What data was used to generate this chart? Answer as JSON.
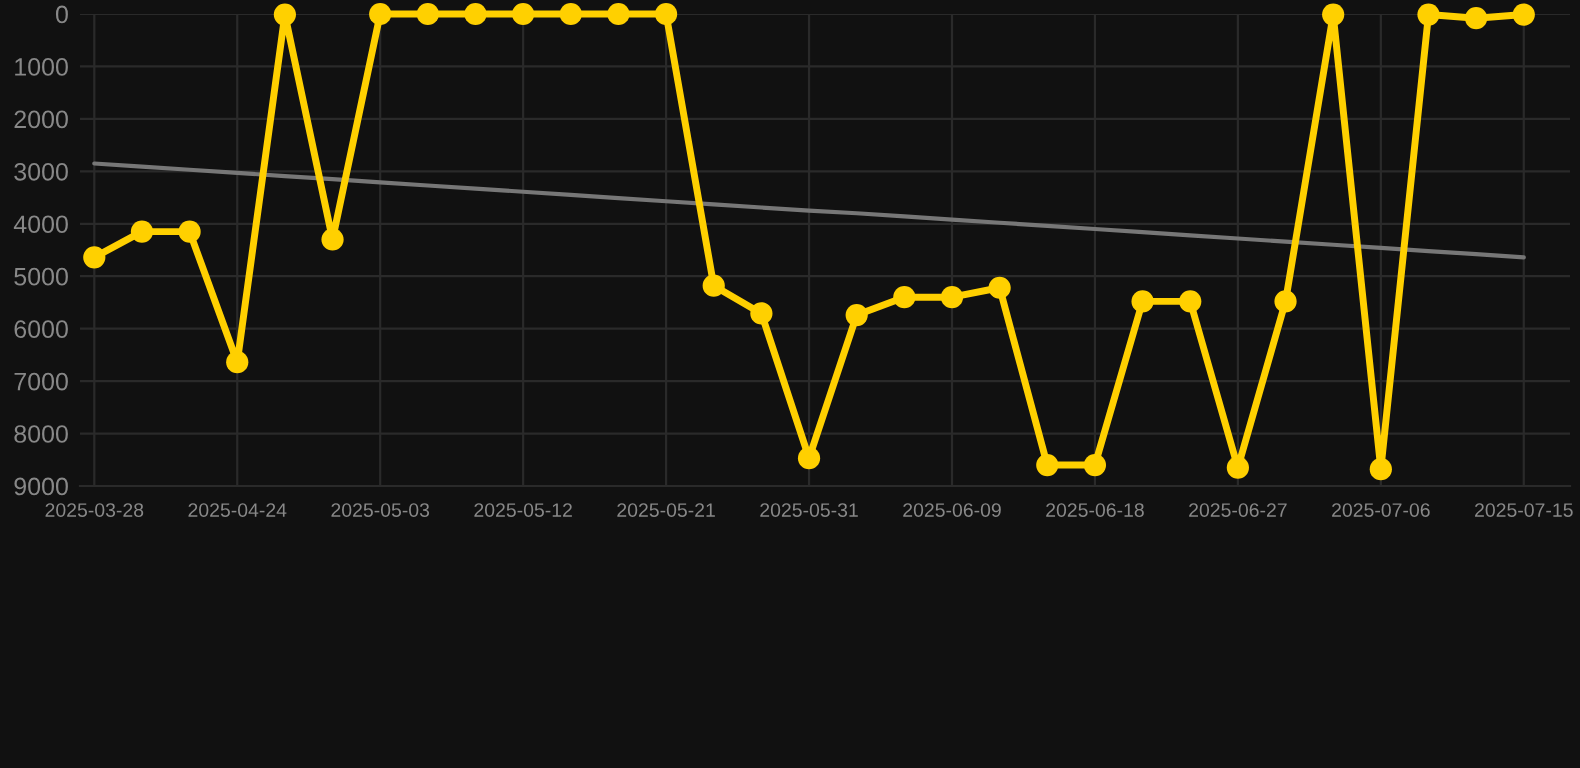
{
  "chart_data": {
    "type": "line",
    "categories": [
      "2025-03-28",
      null,
      null,
      "2025-04-24",
      null,
      null,
      "2025-05-03",
      null,
      null,
      "2025-05-12",
      null,
      null,
      "2025-05-21",
      null,
      null,
      "2025-05-31",
      null,
      null,
      "2025-06-09",
      null,
      null,
      "2025-06-18",
      null,
      null,
      "2025-06-27",
      null,
      null,
      "2025-07-06",
      null,
      null,
      "2025-07-15"
    ],
    "series": [
      {
        "color": "#ffd000",
        "marker": "circle",
        "values": [
          4640,
          4150,
          4150,
          6640,
          10,
          4300,
          0,
          0,
          0,
          0,
          0,
          0,
          0,
          5180,
          5710,
          8470,
          5740,
          5400,
          5400,
          5220,
          8600,
          8600,
          5480,
          5480,
          8650,
          5480,
          10,
          8680,
          10,
          80,
          10
        ]
      },
      {
        "type": "line",
        "color": "#777777",
        "marker": "none",
        "values": [
          2850,
          2910,
          2970,
          3030,
          3090,
          3150,
          3210,
          3270,
          3330,
          3390,
          3450,
          3510,
          3570,
          3630,
          3690,
          3750,
          3800,
          3860,
          3920,
          3980,
          4040,
          4100,
          4160,
          4220,
          4280,
          4340,
          4400,
          4460,
          4520,
          4580,
          4640
        ]
      }
    ],
    "ylim": [
      9000,
      0
    ],
    "yticks": [
      0,
      1000,
      2000,
      3000,
      4000,
      5000,
      6000,
      7000,
      8000,
      9000
    ],
    "grid": true,
    "line_style": "solid",
    "legend": false
  }
}
